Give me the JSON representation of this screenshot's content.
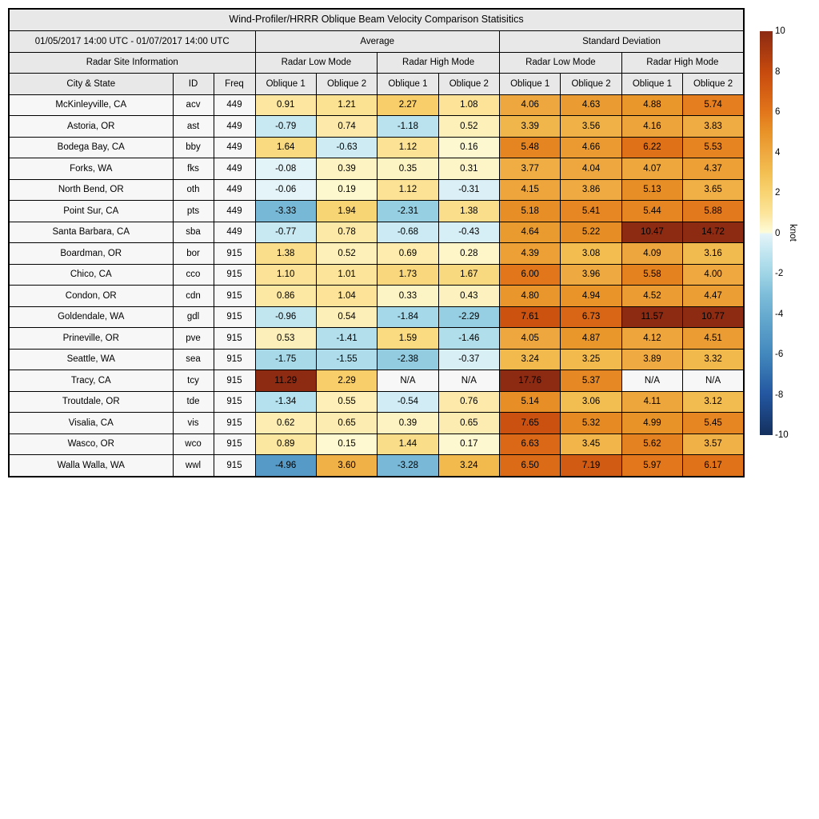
{
  "chart_data": {
    "type": "heatmap",
    "title": "Wind-Profiler/HRRR Oblique Beam Velocity Comparison Statisitics",
    "date_range": "01/05/2017 14:00 UTC - 01/07/2017 14:00 UTC",
    "site_info_label": "Radar Site Information",
    "group_labels": [
      "Average",
      "Standard Deviation"
    ],
    "mode_labels": [
      "Radar Low Mode",
      "Radar High Mode",
      "Radar Low Mode",
      "Radar High Mode"
    ],
    "column_labels": [
      "City & State",
      "ID",
      "Freq",
      "Oblique 1",
      "Oblique 2",
      "Oblique 1",
      "Oblique 2",
      "Oblique 1",
      "Oblique 2",
      "Oblique 1",
      "Oblique 2"
    ],
    "rows": [
      {
        "city": "McKinleyville, CA",
        "id": "acv",
        "freq": "449",
        "values": [
          0.91,
          1.21,
          2.27,
          1.08,
          4.06,
          4.63,
          4.88,
          5.74
        ]
      },
      {
        "city": "Astoria, OR",
        "id": "ast",
        "freq": "449",
        "values": [
          -0.79,
          0.74,
          -1.18,
          0.52,
          3.39,
          3.56,
          4.16,
          3.83
        ]
      },
      {
        "city": "Bodega Bay, CA",
        "id": "bby",
        "freq": "449",
        "values": [
          1.64,
          -0.63,
          1.12,
          0.16,
          5.48,
          4.66,
          6.22,
          5.53
        ]
      },
      {
        "city": "Forks, WA",
        "id": "fks",
        "freq": "449",
        "values": [
          -0.08,
          0.39,
          0.35,
          0.31,
          3.77,
          4.04,
          4.07,
          4.37
        ]
      },
      {
        "city": "North Bend, OR",
        "id": "oth",
        "freq": "449",
        "values": [
          -0.06,
          0.19,
          1.12,
          -0.31,
          4.15,
          3.86,
          5.13,
          3.65
        ]
      },
      {
        "city": "Point Sur, CA",
        "id": "pts",
        "freq": "449",
        "values": [
          -3.33,
          1.94,
          -2.31,
          1.38,
          5.18,
          5.41,
          5.44,
          5.88
        ]
      },
      {
        "city": "Santa Barbara, CA",
        "id": "sba",
        "freq": "449",
        "values": [
          -0.77,
          0.78,
          -0.68,
          -0.43,
          4.64,
          5.22,
          10.47,
          14.72
        ]
      },
      {
        "city": "Boardman, OR",
        "id": "bor",
        "freq": "915",
        "values": [
          1.38,
          0.52,
          0.69,
          0.28,
          4.39,
          3.08,
          4.09,
          3.16
        ]
      },
      {
        "city": "Chico, CA",
        "id": "cco",
        "freq": "915",
        "values": [
          1.1,
          1.01,
          1.73,
          1.67,
          6.0,
          3.96,
          5.58,
          4.0
        ]
      },
      {
        "city": "Condon, OR",
        "id": "cdn",
        "freq": "915",
        "values": [
          0.86,
          1.04,
          0.33,
          0.43,
          4.8,
          4.94,
          4.52,
          4.47
        ]
      },
      {
        "city": "Goldendale, WA",
        "id": "gdl",
        "freq": "915",
        "values": [
          -0.96,
          0.54,
          -1.84,
          -2.29,
          7.61,
          6.73,
          11.57,
          10.77
        ]
      },
      {
        "city": "Prineville, OR",
        "id": "pve",
        "freq": "915",
        "values": [
          0.53,
          -1.41,
          1.59,
          -1.46,
          4.05,
          4.87,
          4.12,
          4.51
        ]
      },
      {
        "city": "Seattle, WA",
        "id": "sea",
        "freq": "915",
        "values": [
          -1.75,
          -1.55,
          -2.38,
          -0.37,
          3.24,
          3.25,
          3.89,
          3.32
        ]
      },
      {
        "city": "Tracy, CA",
        "id": "tcy",
        "freq": "915",
        "values": [
          11.29,
          2.29,
          "N/A",
          "N/A",
          17.76,
          5.37,
          "N/A",
          "N/A"
        ]
      },
      {
        "city": "Troutdale, OR",
        "id": "tde",
        "freq": "915",
        "values": [
          -1.34,
          0.55,
          -0.54,
          0.76,
          5.14,
          3.06,
          4.11,
          3.12
        ]
      },
      {
        "city": "Visalia, CA",
        "id": "vis",
        "freq": "915",
        "values": [
          0.62,
          0.65,
          0.39,
          0.65,
          7.65,
          5.32,
          4.99,
          5.45
        ]
      },
      {
        "city": "Wasco, OR",
        "id": "wco",
        "freq": "915",
        "values": [
          0.89,
          0.15,
          1.44,
          0.17,
          6.63,
          3.45,
          5.62,
          3.57
        ]
      },
      {
        "city": "Walla Walla, WA",
        "id": "wwl",
        "freq": "915",
        "values": [
          -4.96,
          3.6,
          -3.28,
          3.24,
          6.5,
          7.19,
          5.97,
          6.17
        ]
      }
    ],
    "colorbar": {
      "label": "knot",
      "min": -10,
      "max": 10,
      "ticks": [
        10,
        8,
        6,
        4,
        2,
        0,
        -2,
        -4,
        -6,
        -8,
        -10
      ]
    },
    "colors": {
      "header_bg": "#e8e8e8",
      "label_cell_bg": "#f7f7f7",
      "na_cell_bg": "#f7f7f7",
      "border": "#000000",
      "colormap_stops": [
        [
          -10,
          "#14305e"
        ],
        [
          -8,
          "#2356a0"
        ],
        [
          -6,
          "#4288bd"
        ],
        [
          -4,
          "#68acd0"
        ],
        [
          -3,
          "#7fbeda"
        ],
        [
          -2,
          "#a0d5e6"
        ],
        [
          -1,
          "#c0e5f0"
        ],
        [
          -0.05,
          "#e4f4f8"
        ],
        [
          0.05,
          "#fefbd8"
        ],
        [
          1,
          "#fce49a"
        ],
        [
          2,
          "#f8d472"
        ],
        [
          3,
          "#f3bf52"
        ],
        [
          4,
          "#eea83f"
        ],
        [
          5,
          "#e89328"
        ],
        [
          6,
          "#e2761b"
        ],
        [
          7,
          "#d55f14"
        ],
        [
          8,
          "#c64a0e"
        ],
        [
          9,
          "#a93a10"
        ],
        [
          10,
          "#8c2a12"
        ]
      ]
    }
  }
}
